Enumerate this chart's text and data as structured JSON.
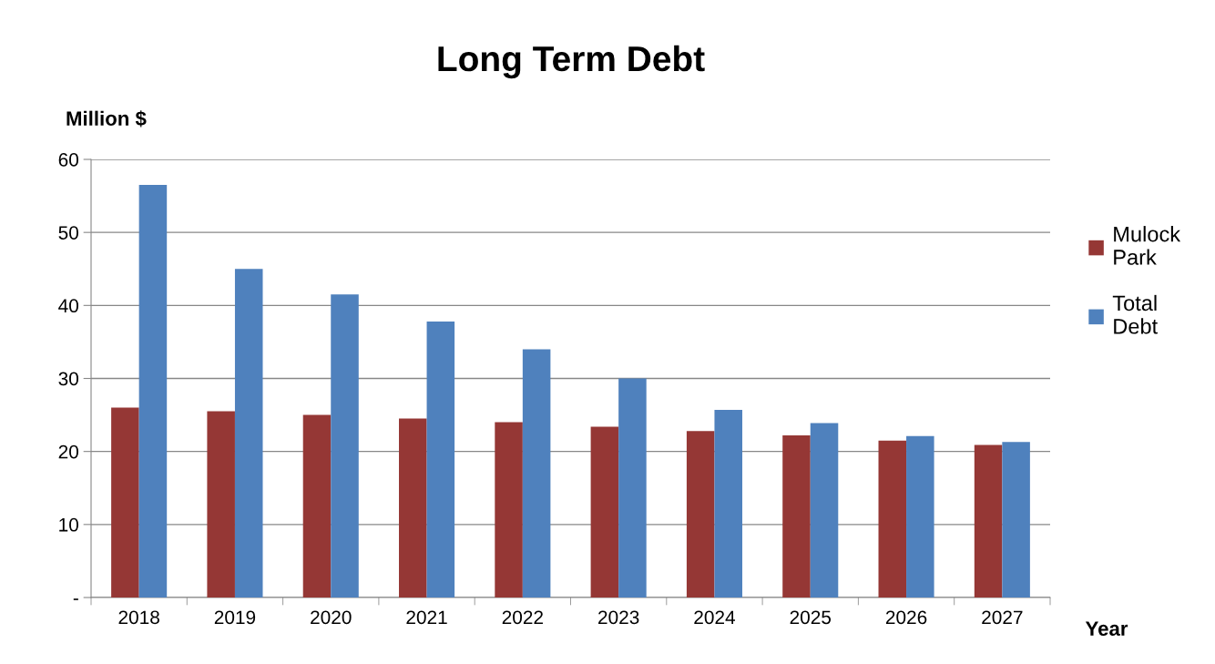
{
  "chart_data": {
    "type": "bar",
    "title": "Long Term Debt",
    "ylabel": "Million $",
    "xlabel": "Year",
    "categories": [
      "2018",
      "2019",
      "2020",
      "2021",
      "2022",
      "2023",
      "2024",
      "2025",
      "2026",
      "2027"
    ],
    "series": [
      {
        "name": "Mulock Park",
        "color": "#953735",
        "values": [
          26.0,
          25.5,
          25.0,
          24.5,
          24.0,
          23.4,
          22.8,
          22.2,
          21.5,
          20.9
        ]
      },
      {
        "name": "Total Debt",
        "color": "#4f81bd",
        "values": [
          56.5,
          45.0,
          41.5,
          37.8,
          34.0,
          30.0,
          25.7,
          23.9,
          22.1,
          21.3
        ]
      }
    ],
    "ylim": [
      0,
      60
    ],
    "yticks": [
      {
        "value": 0,
        "label": "-"
      },
      10,
      20,
      30,
      40,
      50,
      60
    ],
    "grid": "y",
    "legend": "right"
  }
}
